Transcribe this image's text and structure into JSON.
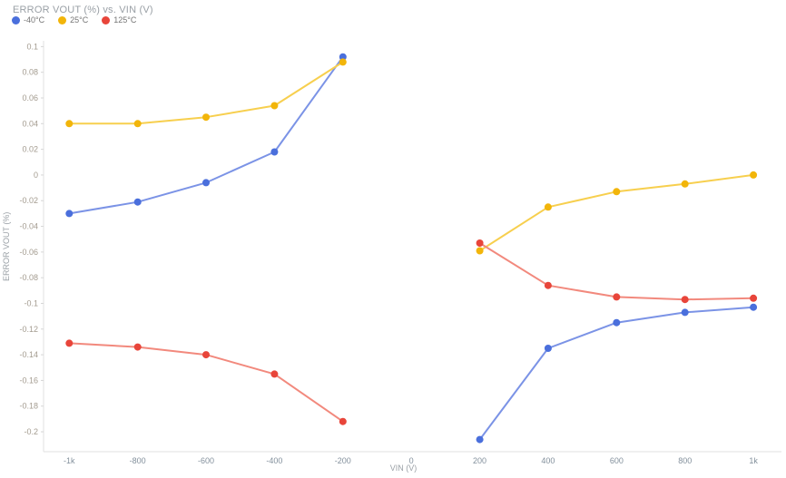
{
  "chart": {
    "title": "ERROR VOUT (%) vs. VIN (V)",
    "x_axis_title": "VIN (V)",
    "y_axis_title": "ERROR VOUT (%)"
  },
  "chart_data": {
    "type": "line",
    "title": "ERROR VOUT (%) vs. VIN (V)",
    "xlabel": "VIN (V)",
    "ylabel": "ERROR VOUT (%)",
    "xlim": [
      -1075,
      1082
    ],
    "ylim": [
      -0.2155,
      0.1045
    ],
    "grid": false,
    "legend_position": "top-left",
    "axis_color": "#e2e2e2",
    "x_ticks": {
      "values": [
        -1000,
        -800,
        -600,
        -400,
        -200,
        0,
        200,
        400,
        600,
        800,
        1000
      ],
      "labels": [
        "-1k",
        "-800",
        "-600",
        "-400",
        "-200",
        "0",
        "200",
        "400",
        "600",
        "800",
        "1k"
      ]
    },
    "y_ticks": {
      "values": [
        0.1,
        0.08,
        0.06,
        0.04,
        0.02,
        0,
        -0.02,
        -0.04,
        -0.06,
        -0.08,
        -0.1,
        -0.12,
        -0.14,
        -0.16,
        -0.18,
        -0.2
      ],
      "labels": [
        "0.1",
        "0.08",
        "0.06",
        "0.04",
        "0.02",
        "0",
        "-0.02",
        "-0.04",
        "-0.06",
        "-0.08",
        "-0.1",
        "-0.12",
        "-0.14",
        "-0.16",
        "-0.18",
        "-0.2"
      ]
    },
    "series": [
      {
        "name": "-40°C",
        "point_color": "#4a6fdc",
        "line_color": "#7b93e6",
        "segments": [
          {
            "x": [
              -1000,
              -800,
              -600,
              -400,
              -200
            ],
            "y": [
              -0.03,
              -0.021,
              -0.006,
              0.018,
              0.092
            ]
          },
          {
            "x": [
              200,
              400,
              600,
              800,
              1000
            ],
            "y": [
              -0.206,
              -0.135,
              -0.115,
              -0.107,
              -0.103
            ]
          }
        ]
      },
      {
        "name": "25°C",
        "point_color": "#f2b50a",
        "line_color": "#f7cf4e",
        "segments": [
          {
            "x": [
              -1000,
              -800,
              -600,
              -400,
              -200
            ],
            "y": [
              0.04,
              0.04,
              0.045,
              0.054,
              0.088
            ]
          },
          {
            "x": [
              200,
              400,
              600,
              800,
              1000
            ],
            "y": [
              -0.059,
              -0.025,
              -0.013,
              -0.007,
              0.0
            ]
          }
        ]
      },
      {
        "name": "125°C",
        "point_color": "#e8453a",
        "line_color": "#f2897d",
        "segments": [
          {
            "x": [
              -1000,
              -800,
              -600,
              -400,
              -200
            ],
            "y": [
              -0.131,
              -0.134,
              -0.14,
              -0.155,
              -0.192
            ]
          },
          {
            "x": [
              200,
              400,
              600,
              800,
              1000
            ],
            "y": [
              -0.053,
              -0.086,
              -0.095,
              -0.097,
              -0.096
            ]
          }
        ]
      }
    ]
  }
}
